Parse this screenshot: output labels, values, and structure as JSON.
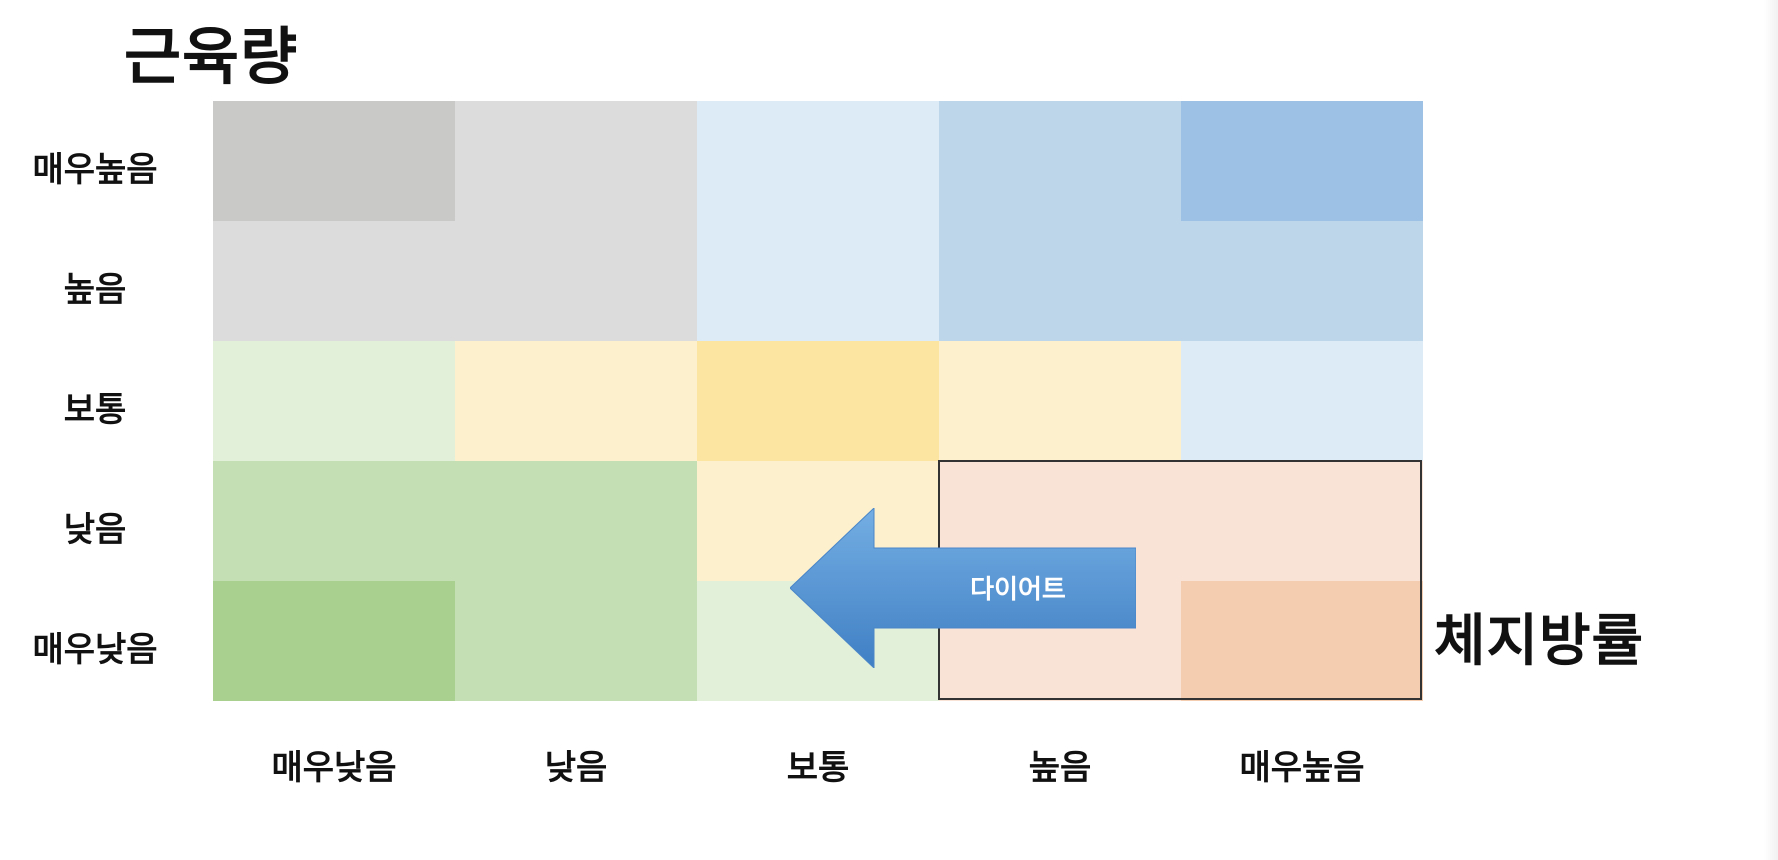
{
  "y_axis_title": "근육량",
  "x_axis_title": "체지방률",
  "row_labels": [
    "매우높음",
    "높음",
    "보통",
    "낮음",
    "매우낮음"
  ],
  "col_labels": [
    "매우낮음",
    "낮음",
    "보통",
    "높음",
    "매우높음"
  ],
  "grid_colors": [
    [
      "#c9cac8",
      "#dbdcdb",
      "#ddebf6",
      "#bdd6ea",
      "#9cc1e5"
    ],
    [
      "#dbdcdb",
      "#dbdcdb",
      "#ddebf6",
      "#bdd6ea",
      "#bdd6ea"
    ],
    [
      "#e2efd9",
      "#fcf0cd",
      "#fce5a0",
      "#fcf0cd",
      "#ddebf6"
    ],
    [
      "#c5dfb4",
      "#c5dfb4",
      "#fcf0cd",
      "#f9e2d6",
      "#f9e2d6"
    ],
    [
      "#a9d08f",
      "#c5dfb4",
      "#e2efd9",
      "#f9e2d6",
      "#f4ccaf"
    ]
  ],
  "arrow": {
    "label": "다이어트",
    "color": "#5b9ad5"
  }
}
